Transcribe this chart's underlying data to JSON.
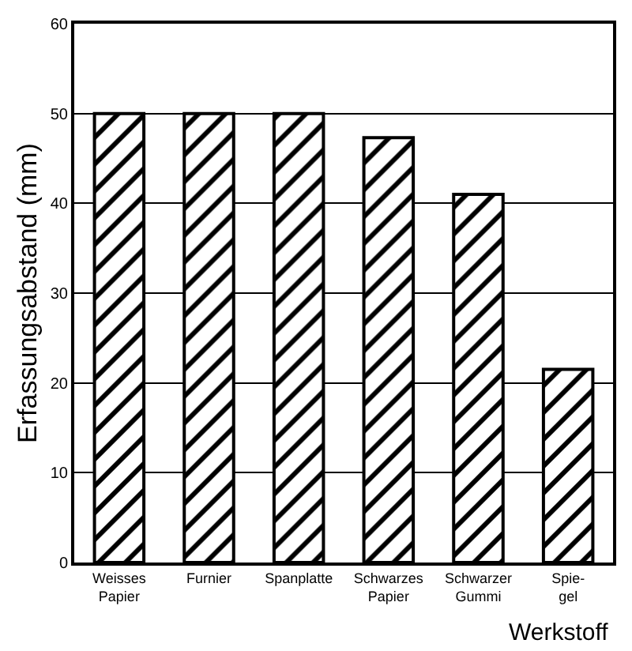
{
  "chart_data": {
    "type": "bar",
    "xlabel": "Werkstoff",
    "ylabel": "Erfassungsabstand (mm)",
    "categories": [
      "Weisses\nPapier",
      "Furnier",
      "Spanplatte",
      "Schwarzes\nPapier",
      "Schwarzer\nGummi",
      "Spie-\ngel"
    ],
    "values": [
      50,
      50,
      50,
      47.3,
      41,
      21.5
    ],
    "color": "#000000",
    "ylim": [
      0,
      60
    ],
    "yticks": [
      0,
      10,
      20,
      30,
      40,
      50,
      60
    ],
    "grid": "y",
    "legend": false
  }
}
